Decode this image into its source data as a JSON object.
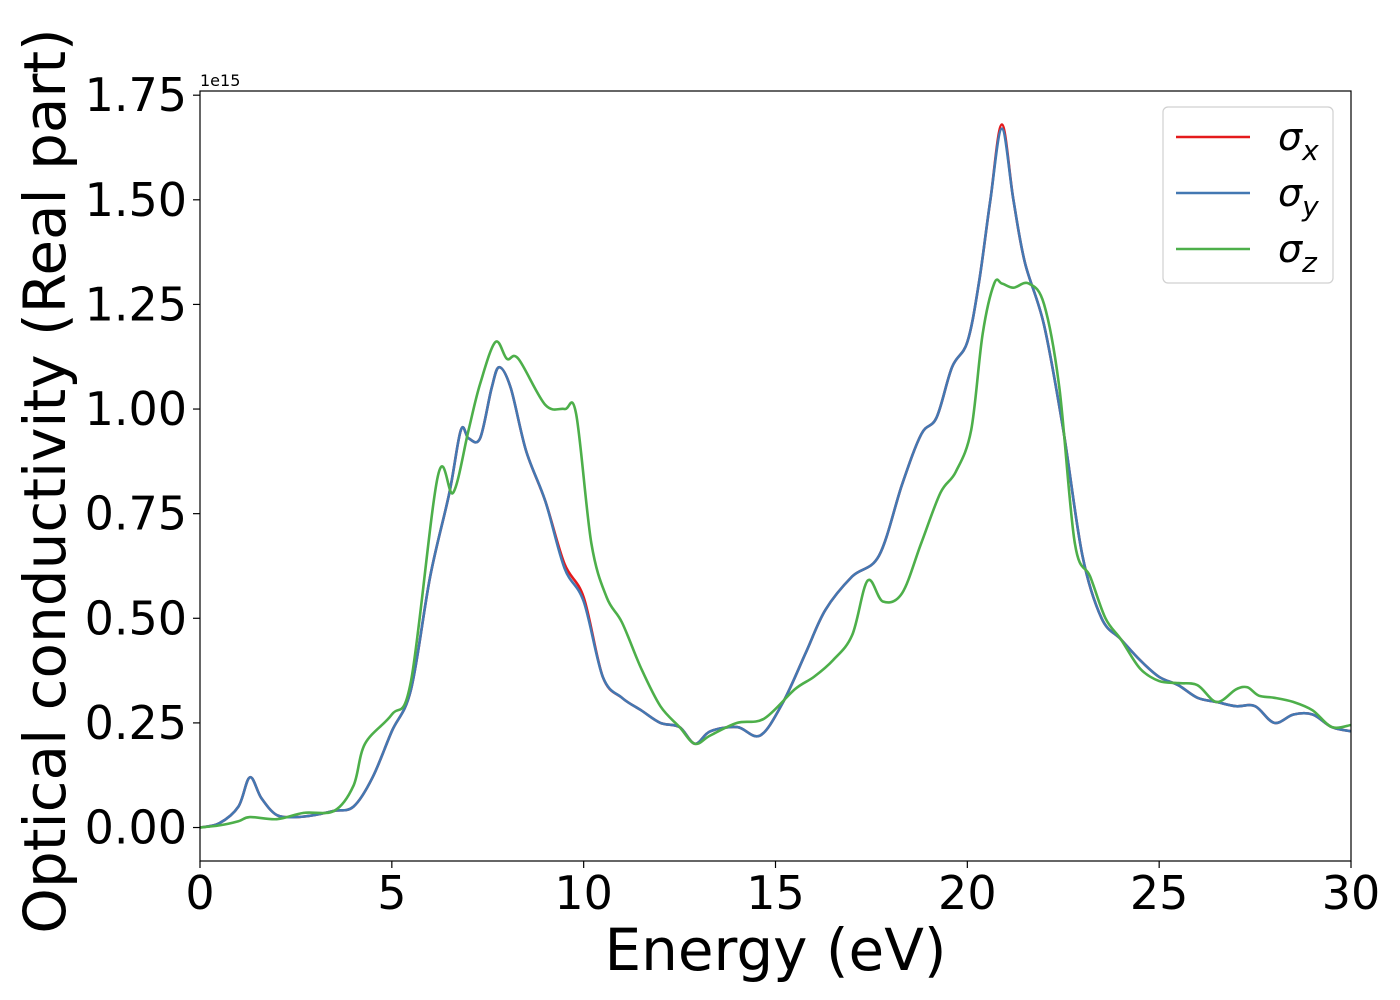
{
  "chart_data": {
    "type": "line",
    "title": "",
    "xlabel": "Energy (eV)",
    "ylabel": "Optical conductivity (Real part)",
    "y_offset_label": "1e15",
    "xlim": [
      0,
      30
    ],
    "ylim": [
      -0.08,
      1.76
    ],
    "xticks": [
      "0",
      "5",
      "10",
      "15",
      "20",
      "25",
      "30"
    ],
    "yticks": [
      "0.00",
      "0.25",
      "0.50",
      "0.75",
      "1.00",
      "1.25",
      "1.50",
      "1.75"
    ],
    "grid": false,
    "legend_position": "upper right",
    "series": [
      {
        "name": "σx",
        "legend_base": "σ",
        "legend_sub": "x",
        "color": "#e41a1c",
        "x": [
          0,
          0.5,
          1.0,
          1.3,
          1.6,
          2.0,
          2.5,
          3.0,
          3.5,
          4.0,
          4.5,
          5.0,
          5.5,
          6.0,
          6.5,
          6.8,
          7.0,
          7.3,
          7.6,
          7.8,
          8.1,
          8.5,
          9.0,
          9.5,
          10.0,
          10.5,
          11.0,
          11.5,
          12.0,
          12.5,
          12.9,
          13.3,
          14.0,
          14.6,
          15.2,
          15.8,
          16.3,
          17.0,
          17.7,
          18.3,
          18.8,
          19.2,
          19.6,
          20.0,
          20.3,
          20.6,
          20.9,
          21.2,
          21.5,
          22.0,
          22.5,
          23.0,
          23.5,
          24.0,
          24.5,
          25.0,
          25.5,
          26.0,
          26.5,
          27.0,
          27.5,
          28.0,
          28.5,
          29.0,
          29.5,
          30.0
        ],
        "values": [
          0.0,
          0.01,
          0.05,
          0.12,
          0.07,
          0.03,
          0.025,
          0.03,
          0.04,
          0.05,
          0.12,
          0.23,
          0.33,
          0.6,
          0.8,
          0.95,
          0.93,
          0.93,
          1.05,
          1.1,
          1.05,
          0.9,
          0.78,
          0.63,
          0.55,
          0.36,
          0.31,
          0.28,
          0.25,
          0.24,
          0.2,
          0.23,
          0.24,
          0.22,
          0.3,
          0.42,
          0.52,
          0.6,
          0.65,
          0.82,
          0.94,
          0.98,
          1.1,
          1.16,
          1.3,
          1.5,
          1.68,
          1.5,
          1.35,
          1.2,
          0.95,
          0.65,
          0.5,
          0.45,
          0.4,
          0.36,
          0.34,
          0.31,
          0.3,
          0.29,
          0.29,
          0.25,
          0.27,
          0.27,
          0.24,
          0.23
        ]
      },
      {
        "name": "σy",
        "legend_base": "σ",
        "legend_sub": "y",
        "color": "#4378b2",
        "x": [
          0,
          0.5,
          1.0,
          1.3,
          1.6,
          2.0,
          2.5,
          3.0,
          3.5,
          4.0,
          4.5,
          5.0,
          5.5,
          6.0,
          6.5,
          6.8,
          7.0,
          7.3,
          7.6,
          7.8,
          8.1,
          8.5,
          9.0,
          9.5,
          10.0,
          10.5,
          11.0,
          11.5,
          12.0,
          12.5,
          12.9,
          13.3,
          14.0,
          14.6,
          15.2,
          15.8,
          16.3,
          17.0,
          17.7,
          18.3,
          18.8,
          19.2,
          19.6,
          20.0,
          20.3,
          20.6,
          20.9,
          21.2,
          21.5,
          22.0,
          22.5,
          23.0,
          23.5,
          24.0,
          24.5,
          25.0,
          25.5,
          26.0,
          26.5,
          27.0,
          27.5,
          28.0,
          28.5,
          29.0,
          29.5,
          30.0
        ],
        "values": [
          0.0,
          0.01,
          0.05,
          0.12,
          0.07,
          0.03,
          0.025,
          0.03,
          0.04,
          0.05,
          0.12,
          0.23,
          0.33,
          0.6,
          0.8,
          0.95,
          0.93,
          0.93,
          1.05,
          1.1,
          1.05,
          0.9,
          0.78,
          0.62,
          0.54,
          0.36,
          0.31,
          0.28,
          0.25,
          0.24,
          0.2,
          0.23,
          0.24,
          0.22,
          0.3,
          0.42,
          0.52,
          0.6,
          0.65,
          0.82,
          0.94,
          0.98,
          1.1,
          1.16,
          1.3,
          1.5,
          1.67,
          1.5,
          1.35,
          1.2,
          0.95,
          0.65,
          0.5,
          0.45,
          0.4,
          0.36,
          0.34,
          0.31,
          0.3,
          0.29,
          0.29,
          0.25,
          0.27,
          0.27,
          0.24,
          0.23
        ]
      },
      {
        "name": "σz",
        "legend_base": "σ",
        "legend_sub": "z",
        "color": "#4daf4a",
        "x": [
          0,
          0.5,
          1.0,
          1.3,
          2.0,
          2.7,
          3.5,
          4.0,
          4.3,
          5.0,
          5.5,
          6.2,
          6.6,
          7.0,
          7.3,
          7.7,
          8.0,
          8.3,
          9.0,
          9.5,
          9.8,
          10.2,
          10.6,
          11.0,
          11.5,
          12.0,
          12.5,
          12.9,
          13.3,
          14.0,
          14.7,
          15.5,
          16.0,
          16.5,
          17.0,
          17.4,
          17.8,
          18.3,
          18.8,
          19.3,
          19.7,
          20.1,
          20.4,
          20.7,
          20.9,
          21.2,
          21.6,
          22.0,
          22.4,
          22.8,
          23.2,
          23.6,
          24.0,
          24.5,
          25.0,
          25.5,
          26.0,
          26.5,
          27.0,
          27.3,
          27.6,
          28.0,
          28.5,
          29.0,
          29.5,
          30.0
        ],
        "values": [
          0.0,
          0.005,
          0.015,
          0.025,
          0.02,
          0.035,
          0.04,
          0.1,
          0.2,
          0.27,
          0.35,
          0.84,
          0.8,
          0.95,
          1.06,
          1.16,
          1.12,
          1.12,
          1.01,
          1.0,
          0.99,
          0.68,
          0.55,
          0.49,
          0.38,
          0.29,
          0.24,
          0.2,
          0.22,
          0.25,
          0.26,
          0.33,
          0.36,
          0.4,
          0.46,
          0.59,
          0.54,
          0.56,
          0.68,
          0.8,
          0.85,
          0.95,
          1.18,
          1.3,
          1.3,
          1.29,
          1.3,
          1.25,
          1.05,
          0.68,
          0.6,
          0.5,
          0.45,
          0.38,
          0.35,
          0.345,
          0.34,
          0.3,
          0.33,
          0.335,
          0.315,
          0.31,
          0.3,
          0.28,
          0.24,
          0.245
        ]
      }
    ]
  }
}
